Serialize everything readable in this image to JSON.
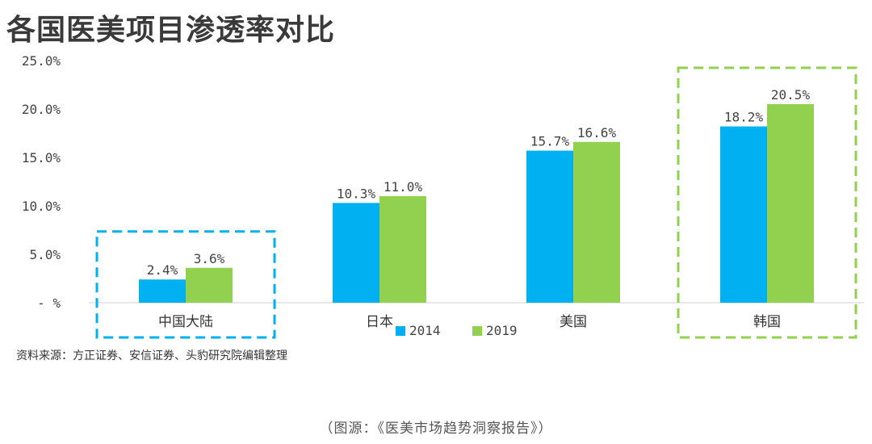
{
  "page": {
    "title": "各国医美项目渗透率对比",
    "source": "资料来源：方正证券、安信证券、头豹研究院编辑整理",
    "caption": "（图源：《医美市场趋势洞察报告》）"
  },
  "chart_data": {
    "type": "bar",
    "title": "各国医美项目渗透率对比",
    "categories": [
      "中国大陆",
      "日本",
      "美国",
      "韩国"
    ],
    "series": [
      {
        "name": "2014",
        "color": "#00b0f0",
        "values": [
          2.4,
          10.3,
          15.7,
          18.2
        ],
        "labels": [
          "2.4%",
          "10.3%",
          "15.7%",
          "18.2%"
        ]
      },
      {
        "name": "2019",
        "color": "#92d050",
        "values": [
          3.6,
          11.0,
          16.6,
          20.5
        ],
        "labels": [
          "3.6%",
          "11.0%",
          "16.6%",
          "20.5%"
        ]
      }
    ],
    "ylim": [
      0,
      25
    ],
    "yticks": [
      {
        "value": 25,
        "label": "25.0%"
      },
      {
        "value": 20,
        "label": "20.0%"
      },
      {
        "value": 15,
        "label": "15.0%"
      },
      {
        "value": 10,
        "label": "10.0%"
      },
      {
        "value": 5,
        "label": "5.0%"
      },
      {
        "value": 0,
        "label": "- %"
      }
    ],
    "grid": false,
    "legend_position": "bottom-center",
    "highlights": [
      {
        "category": "中国大陆",
        "color": "#00b0f0",
        "style": "dashed"
      },
      {
        "category": "韩国",
        "color": "#92d050",
        "style": "dashed"
      }
    ]
  }
}
